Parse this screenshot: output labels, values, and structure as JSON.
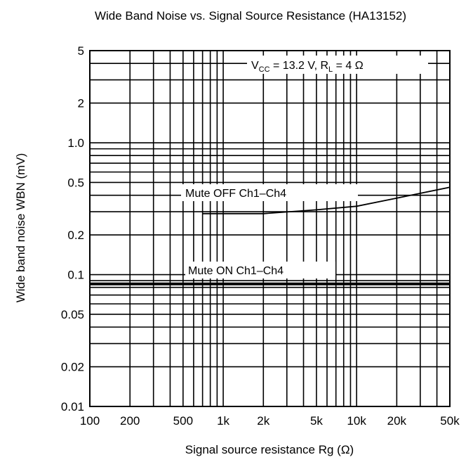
{
  "chart_data": {
    "type": "line",
    "title": "Wide Band Noise vs. Signal Source Resistance (HA13152)",
    "xlabel": "Signal source resistance  Rg (Ω)",
    "ylabel": "Wide band noise  WBN (mV)",
    "x_scale": "log",
    "y_scale": "log",
    "xlim": [
      100,
      50000
    ],
    "ylim": [
      0.01,
      5
    ],
    "grid": true,
    "x_ticks": [
      {
        "value": 100,
        "label": "100"
      },
      {
        "value": 200,
        "label": "200"
      },
      {
        "value": 500,
        "label": "500"
      },
      {
        "value": 1000,
        "label": "1k"
      },
      {
        "value": 2000,
        "label": "2k"
      },
      {
        "value": 5000,
        "label": "5k"
      },
      {
        "value": 10000,
        "label": "10k"
      },
      {
        "value": 20000,
        "label": "20k"
      },
      {
        "value": 50000,
        "label": "50k"
      }
    ],
    "y_ticks": [
      {
        "value": 5,
        "label": "5"
      },
      {
        "value": 2,
        "label": "2"
      },
      {
        "value": 1.0,
        "label": "1.0"
      },
      {
        "value": 0.5,
        "label": "0.5"
      },
      {
        "value": 0.2,
        "label": "0.2"
      },
      {
        "value": 0.1,
        "label": "0.1"
      },
      {
        "value": 0.05,
        "label": "0.05"
      },
      {
        "value": 0.02,
        "label": "0.02"
      },
      {
        "value": 0.01,
        "label": "0.01"
      }
    ],
    "condition": {
      "vcc_main": "V",
      "vcc_sub": "CC",
      "vcc_value": " = 13.2 V, R",
      "rl_sub": "L",
      "rl_value": " = 4 Ω"
    },
    "series": [
      {
        "name": "Mute OFF Ch1–Ch4",
        "x": [
          700,
          1000,
          2000,
          5000,
          10000,
          20000,
          50000
        ],
        "y": [
          0.29,
          0.29,
          0.29,
          0.31,
          0.33,
          0.38,
          0.46
        ]
      },
      {
        "name": "Mute ON Ch1–Ch4",
        "x": [
          100,
          50000
        ],
        "y": [
          0.085,
          0.085
        ]
      }
    ]
  }
}
